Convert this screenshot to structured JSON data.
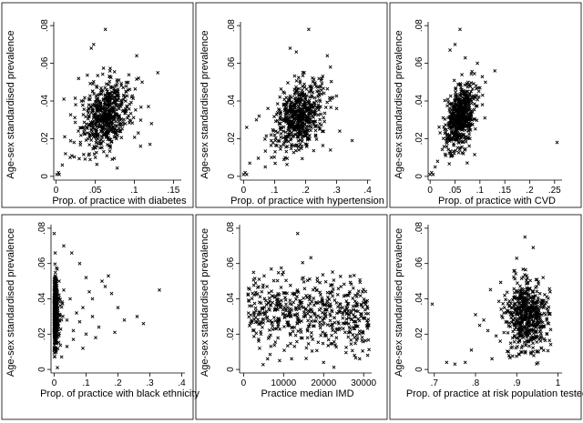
{
  "chart_data": [
    {
      "type": "scatter",
      "xlabel": "Prop. of practice with diabetes",
      "ylabel": "Age-sex standardised prevalence",
      "xlim": [
        -0.003,
        0.16
      ],
      "ylim": [
        -0.002,
        0.082
      ],
      "xticks": [
        0,
        0.05,
        0.1,
        0.15
      ],
      "xtick_labels": [
        "0",
        ".05",
        ".1",
        ".15"
      ],
      "yticks": [
        0,
        0.02,
        0.04,
        0.06,
        0.08
      ],
      "ytick_labels": [
        "0",
        ".02",
        ".04",
        ".06",
        ".08"
      ],
      "grid": false,
      "marker": "x",
      "cloud": {
        "x_mean": 0.064,
        "x_sd": 0.015,
        "y_mean": 0.032,
        "y_sd": 0.009,
        "corr": 0.35,
        "n": 600
      },
      "points": [
        [
          0.001,
          0.001
        ],
        [
          0.003,
          0.002
        ],
        [
          0.004,
          0.001
        ],
        [
          0.008,
          0.006
        ],
        [
          0.012,
          0.012
        ],
        [
          0.018,
          0.01
        ],
        [
          0.023,
          0.018
        ],
        [
          0.063,
          0.078
        ],
        [
          0.045,
          0.068
        ],
        [
          0.048,
          0.07
        ],
        [
          0.103,
          0.064
        ],
        [
          0.13,
          0.055
        ],
        [
          0.11,
          0.05
        ],
        [
          0.118,
          0.037
        ],
        [
          0.122,
          0.028
        ],
        [
          0.105,
          0.023
        ],
        [
          0.108,
          0.016
        ],
        [
          0.12,
          0.017
        ],
        [
          0.01,
          0.041
        ],
        [
          0.011,
          0.021
        ],
        [
          0.025,
          0.038
        ]
      ]
    },
    {
      "type": "scatter",
      "xlabel": "Prop. of practice with hypertension",
      "ylabel": "Age-sex standardised prevalence",
      "xlim": [
        -0.01,
        0.41
      ],
      "ylim": [
        -0.002,
        0.082
      ],
      "xticks": [
        0,
        0.1,
        0.2,
        0.3,
        0.4
      ],
      "xtick_labels": [
        "0",
        ".1",
        ".2",
        ".3",
        ".4"
      ],
      "yticks": [
        0,
        0.02,
        0.04,
        0.06,
        0.08
      ],
      "ytick_labels": [
        "0",
        ".02",
        ".04",
        ".06",
        ".08"
      ],
      "grid": false,
      "marker": "x",
      "cloud": {
        "x_mean": 0.18,
        "x_sd": 0.04,
        "y_mean": 0.032,
        "y_sd": 0.009,
        "corr": 0.3,
        "n": 600
      },
      "points": [
        [
          0.0,
          0.001
        ],
        [
          0.005,
          0.002
        ],
        [
          0.01,
          0.001
        ],
        [
          0.02,
          0.007
        ],
        [
          0.07,
          0.005
        ],
        [
          0.09,
          0.01
        ],
        [
          0.21,
          0.078
        ],
        [
          0.15,
          0.068
        ],
        [
          0.17,
          0.066
        ],
        [
          0.27,
          0.064
        ],
        [
          0.28,
          0.058
        ],
        [
          0.3,
          0.036
        ],
        [
          0.31,
          0.024
        ],
        [
          0.35,
          0.019
        ],
        [
          0.28,
          0.014
        ],
        [
          0.01,
          0.026
        ],
        [
          0.05,
          0.032
        ]
      ]
    },
    {
      "type": "scatter",
      "xlabel": "Prop. of practice with CVD",
      "ylabel": "Age-sex standardised prevalence",
      "xlim": [
        -0.004,
        0.265
      ],
      "ylim": [
        -0.002,
        0.082
      ],
      "xticks": [
        0,
        0.05,
        0.1,
        0.15,
        0.2,
        0.25
      ],
      "xtick_labels": [
        "0",
        ".05",
        ".1",
        ".15",
        ".2",
        ".25"
      ],
      "yticks": [
        0,
        0.02,
        0.04,
        0.06,
        0.08
      ],
      "ytick_labels": [
        "0",
        ".02",
        ".04",
        ".06",
        ".08"
      ],
      "grid": false,
      "marker": "x",
      "cloud": {
        "x_mean": 0.06,
        "x_sd": 0.015,
        "y_mean": 0.032,
        "y_sd": 0.009,
        "corr": 0.4,
        "n": 600
      },
      "points": [
        [
          0.0,
          0.001
        ],
        [
          0.003,
          0.002
        ],
        [
          0.006,
          0.001
        ],
        [
          0.01,
          0.005
        ],
        [
          0.015,
          0.008
        ],
        [
          0.06,
          0.078
        ],
        [
          0.04,
          0.067
        ],
        [
          0.05,
          0.07
        ],
        [
          0.13,
          0.056
        ],
        [
          0.1,
          0.047
        ],
        [
          0.105,
          0.038
        ],
        [
          0.11,
          0.031
        ],
        [
          0.255,
          0.018
        ],
        [
          0.095,
          0.06
        ]
      ]
    },
    {
      "type": "scatter",
      "xlabel": "Prop. of practice with black ethnicity",
      "ylabel": "Age-sex standardised prevalence",
      "xlim": [
        -0.01,
        0.41
      ],
      "ylim": [
        -0.002,
        0.082
      ],
      "xticks": [
        0,
        0.1,
        0.2,
        0.3,
        0.4
      ],
      "xtick_labels": [
        "0",
        ".1",
        ".2",
        ".3",
        ".4"
      ],
      "yticks": [
        0,
        0.02,
        0.04,
        0.06,
        0.08
      ],
      "ytick_labels": [
        "0",
        ".02",
        ".04",
        ".06",
        ".08"
      ],
      "grid": false,
      "marker": "x",
      "cloud": {
        "x_mean": 0.008,
        "x_sd": 0.008,
        "y_mean": 0.031,
        "y_sd": 0.01,
        "corr": 0.0,
        "n": 520
      },
      "points": [
        [
          0.0,
          0.077
        ],
        [
          0.03,
          0.07
        ],
        [
          0.055,
          0.066
        ],
        [
          0.08,
          0.06
        ],
        [
          0.1,
          0.052
        ],
        [
          0.11,
          0.044
        ],
        [
          0.12,
          0.04
        ],
        [
          0.15,
          0.05
        ],
        [
          0.16,
          0.047
        ],
        [
          0.17,
          0.053
        ],
        [
          0.18,
          0.043
        ],
        [
          0.2,
          0.035
        ],
        [
          0.22,
          0.028
        ],
        [
          0.26,
          0.03
        ],
        [
          0.28,
          0.026
        ],
        [
          0.33,
          0.045
        ],
        [
          0.09,
          0.035
        ],
        [
          0.12,
          0.03
        ],
        [
          0.1,
          0.02
        ],
        [
          0.14,
          0.024
        ],
        [
          0.13,
          0.018
        ],
        [
          0.04,
          0.013
        ],
        [
          0.06,
          0.017
        ],
        [
          0.09,
          0.012
        ],
        [
          0.05,
          0.04
        ],
        [
          0.07,
          0.032
        ],
        [
          0.08,
          0.027
        ],
        [
          0.06,
          0.022
        ],
        [
          0.19,
          0.021
        ],
        [
          0.03,
          0.045
        ],
        [
          0.04,
          0.028
        ]
      ]
    },
    {
      "type": "scatter",
      "xlabel": "Practice median IMD",
      "ylabel": "Age-sex standardised prevalence",
      "xlim": [
        -1000,
        32000
      ],
      "ylim": [
        -0.002,
        0.082
      ],
      "xticks": [
        0,
        10000,
        20000,
        30000
      ],
      "xtick_labels": [
        "0",
        "10000",
        "20000",
        "30000"
      ],
      "yticks": [
        0,
        0.02,
        0.04,
        0.06,
        0.08
      ],
      "ytick_labels": [
        "0",
        ".02",
        ".04",
        ".06",
        ".08"
      ],
      "grid": false,
      "marker": "x",
      "cloud": {
        "x_mean": 17000,
        "x_sd": 7500,
        "y_mean": 0.032,
        "y_sd": 0.01,
        "corr": -0.15,
        "n": 560,
        "x_min": 1000,
        "x_max": 31500
      },
      "points": [
        [
          13500,
          0.077
        ],
        [
          2500,
          0.055
        ],
        [
          3000,
          0.049
        ],
        [
          1500,
          0.036
        ],
        [
          2000,
          0.027
        ],
        [
          4000,
          0.012
        ],
        [
          6000,
          0.006
        ],
        [
          9000,
          0.005
        ],
        [
          12000,
          0.006
        ],
        [
          20000,
          0.004
        ],
        [
          29000,
          0.006
        ],
        [
          31000,
          0.008
        ],
        [
          30500,
          0.037
        ]
      ]
    },
    {
      "type": "scatter",
      "xlabel": "Prop. of practice at risk population tested",
      "ylabel": "Age-sex standardised prevalence",
      "xlim": [
        0.685,
        1.01
      ],
      "ylim": [
        -0.002,
        0.082
      ],
      "xticks": [
        0.7,
        0.8,
        0.9,
        1
      ],
      "xtick_labels": [
        ".7",
        ".8",
        ".9",
        "1"
      ],
      "yticks": [
        0,
        0.02,
        0.04,
        0.06,
        0.08
      ],
      "ytick_labels": [
        "0",
        ".02",
        ".04",
        ".06",
        ".08"
      ],
      "grid": false,
      "marker": "x",
      "cloud": {
        "x_mean": 0.925,
        "x_sd": 0.025,
        "y_mean": 0.03,
        "y_sd": 0.01,
        "corr": -0.1,
        "n": 560,
        "x_max": 0.985
      },
      "points": [
        [
          0.695,
          0.037
        ],
        [
          0.73,
          0.004
        ],
        [
          0.75,
          0.003
        ],
        [
          0.775,
          0.004
        ],
        [
          0.79,
          0.011
        ],
        [
          0.8,
          0.031
        ],
        [
          0.81,
          0.025
        ],
        [
          0.82,
          0.028
        ],
        [
          0.83,
          0.022
        ],
        [
          0.84,
          0.006
        ],
        [
          0.85,
          0.019
        ],
        [
          0.86,
          0.016
        ],
        [
          0.87,
          0.035
        ],
        [
          0.88,
          0.01
        ],
        [
          0.9,
          0.063
        ],
        [
          0.92,
          0.075
        ],
        [
          0.94,
          0.069
        ]
      ]
    }
  ]
}
